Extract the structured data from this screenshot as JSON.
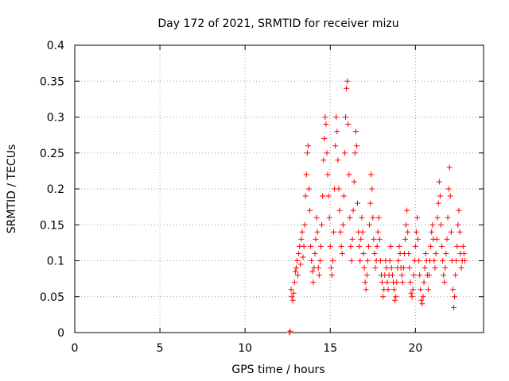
{
  "chart_data": {
    "type": "scatter",
    "title": "Day 172 of 2021, SRMTID for receiver mizu",
    "xlabel": "GPS time / hours",
    "ylabel": "SRMTID / TECUs",
    "xlim": [
      0,
      24
    ],
    "ylim": [
      0,
      0.4
    ],
    "xticks": [
      0,
      5,
      10,
      15,
      20
    ],
    "xtick_labels": [
      "0",
      "5",
      "10",
      "15",
      "20"
    ],
    "yticks": [
      0,
      0.05,
      0.1,
      0.15,
      0.2,
      0.25,
      0.3,
      0.35,
      0.4
    ],
    "ytick_labels": [
      "0",
      "0.05",
      "0.1",
      "0.15",
      "0.2",
      "0.25",
      "0.3",
      "0.35",
      "0.4"
    ],
    "grid": true,
    "marker": "+",
    "color": "#ff0000",
    "series": [
      {
        "name": "SRMTID",
        "points": [
          [
            12.6,
            0.0
          ],
          [
            12.65,
            0.002
          ],
          [
            12.7,
            0.06
          ],
          [
            12.75,
            0.05
          ],
          [
            12.8,
            0.045
          ],
          [
            12.85,
            0.055
          ],
          [
            12.9,
            0.07
          ],
          [
            12.95,
            0.085
          ],
          [
            13.0,
            0.09
          ],
          [
            13.05,
            0.1
          ],
          [
            13.1,
            0.08
          ],
          [
            13.15,
            0.11
          ],
          [
            13.2,
            0.12
          ],
          [
            13.25,
            0.095
          ],
          [
            13.3,
            0.13
          ],
          [
            13.35,
            0.14
          ],
          [
            13.4,
            0.105
          ],
          [
            13.45,
            0.12
          ],
          [
            13.5,
            0.15
          ],
          [
            13.55,
            0.19
          ],
          [
            13.6,
            0.22
          ],
          [
            13.65,
            0.25
          ],
          [
            13.7,
            0.26
          ],
          [
            13.75,
            0.2
          ],
          [
            13.8,
            0.17
          ],
          [
            13.85,
            0.12
          ],
          [
            13.9,
            0.1
          ],
          [
            13.95,
            0.085
          ],
          [
            14.0,
            0.07
          ],
          [
            14.05,
            0.09
          ],
          [
            14.1,
            0.11
          ],
          [
            14.15,
            0.13
          ],
          [
            14.2,
            0.16
          ],
          [
            14.25,
            0.14
          ],
          [
            14.3,
            0.09
          ],
          [
            14.35,
            0.08
          ],
          [
            14.4,
            0.1
          ],
          [
            14.45,
            0.12
          ],
          [
            14.5,
            0.15
          ],
          [
            14.55,
            0.19
          ],
          [
            14.6,
            0.24
          ],
          [
            14.65,
            0.27
          ],
          [
            14.7,
            0.3
          ],
          [
            14.75,
            0.29
          ],
          [
            14.8,
            0.25
          ],
          [
            14.85,
            0.22
          ],
          [
            14.9,
            0.19
          ],
          [
            14.95,
            0.16
          ],
          [
            15.0,
            0.12
          ],
          [
            15.05,
            0.09
          ],
          [
            15.1,
            0.08
          ],
          [
            15.15,
            0.1
          ],
          [
            15.2,
            0.14
          ],
          [
            15.25,
            0.2
          ],
          [
            15.3,
            0.26
          ],
          [
            15.35,
            0.3
          ],
          [
            15.4,
            0.28
          ],
          [
            15.45,
            0.24
          ],
          [
            15.5,
            0.2
          ],
          [
            15.55,
            0.17
          ],
          [
            15.6,
            0.14
          ],
          [
            15.65,
            0.12
          ],
          [
            15.7,
            0.11
          ],
          [
            15.75,
            0.15
          ],
          [
            15.8,
            0.19
          ],
          [
            15.85,
            0.25
          ],
          [
            15.9,
            0.3
          ],
          [
            15.95,
            0.34
          ],
          [
            16.0,
            0.35
          ],
          [
            16.05,
            0.29
          ],
          [
            16.1,
            0.22
          ],
          [
            16.15,
            0.16
          ],
          [
            16.2,
            0.12
          ],
          [
            16.25,
            0.1
          ],
          [
            16.3,
            0.13
          ],
          [
            16.35,
            0.17
          ],
          [
            16.4,
            0.21
          ],
          [
            16.45,
            0.25
          ],
          [
            16.5,
            0.28
          ],
          [
            16.55,
            0.26
          ],
          [
            16.6,
            0.18
          ],
          [
            16.65,
            0.14
          ],
          [
            16.7,
            0.12
          ],
          [
            16.75,
            0.1
          ],
          [
            16.8,
            0.13
          ],
          [
            16.85,
            0.16
          ],
          [
            16.9,
            0.14
          ],
          [
            16.95,
            0.11
          ],
          [
            17.0,
            0.09
          ],
          [
            17.05,
            0.07
          ],
          [
            17.1,
            0.06
          ],
          [
            17.15,
            0.08
          ],
          [
            17.2,
            0.1
          ],
          [
            17.25,
            0.12
          ],
          [
            17.3,
            0.15
          ],
          [
            17.35,
            0.18
          ],
          [
            17.4,
            0.22
          ],
          [
            17.45,
            0.2
          ],
          [
            17.5,
            0.16
          ],
          [
            17.55,
            0.13
          ],
          [
            17.6,
            0.11
          ],
          [
            17.65,
            0.09
          ],
          [
            17.7,
            0.1
          ],
          [
            17.75,
            0.12
          ],
          [
            17.8,
            0.14
          ],
          [
            17.85,
            0.16
          ],
          [
            17.9,
            0.13
          ],
          [
            17.95,
            0.1
          ],
          [
            18.0,
            0.08
          ],
          [
            18.05,
            0.07
          ],
          [
            18.1,
            0.05
          ],
          [
            18.15,
            0.06
          ],
          [
            18.2,
            0.08
          ],
          [
            18.25,
            0.1
          ],
          [
            18.3,
            0.09
          ],
          [
            18.35,
            0.07
          ],
          [
            18.4,
            0.06
          ],
          [
            18.45,
            0.08
          ],
          [
            18.5,
            0.1
          ],
          [
            18.55,
            0.12
          ],
          [
            18.6,
            0.09
          ],
          [
            18.65,
            0.08
          ],
          [
            18.7,
            0.07
          ],
          [
            18.75,
            0.06
          ],
          [
            18.8,
            0.045
          ],
          [
            18.85,
            0.05
          ],
          [
            18.9,
            0.07
          ],
          [
            18.95,
            0.09
          ],
          [
            19.0,
            0.1
          ],
          [
            19.05,
            0.12
          ],
          [
            19.1,
            0.11
          ],
          [
            19.15,
            0.09
          ],
          [
            19.2,
            0.08
          ],
          [
            19.25,
            0.07
          ],
          [
            19.3,
            0.09
          ],
          [
            19.35,
            0.11
          ],
          [
            19.4,
            0.13
          ],
          [
            19.45,
            0.15
          ],
          [
            19.5,
            0.17
          ],
          [
            19.55,
            0.14
          ],
          [
            19.6,
            0.11
          ],
          [
            19.65,
            0.09
          ],
          [
            19.7,
            0.07
          ],
          [
            19.75,
            0.055
          ],
          [
            19.8,
            0.05
          ],
          [
            19.85,
            0.06
          ],
          [
            19.9,
            0.08
          ],
          [
            19.95,
            0.1
          ],
          [
            20.0,
            0.12
          ],
          [
            20.05,
            0.14
          ],
          [
            20.1,
            0.16
          ],
          [
            20.15,
            0.13
          ],
          [
            20.2,
            0.1
          ],
          [
            20.25,
            0.08
          ],
          [
            20.3,
            0.06
          ],
          [
            20.35,
            0.045
          ],
          [
            20.4,
            0.04
          ],
          [
            20.45,
            0.05
          ],
          [
            20.5,
            0.07
          ],
          [
            20.55,
            0.09
          ],
          [
            20.6,
            0.11
          ],
          [
            20.65,
            0.1
          ],
          [
            20.7,
            0.08
          ],
          [
            20.75,
            0.06
          ],
          [
            20.8,
            0.08
          ],
          [
            20.85,
            0.1
          ],
          [
            20.9,
            0.12
          ],
          [
            20.95,
            0.14
          ],
          [
            21.0,
            0.15
          ],
          [
            21.05,
            0.13
          ],
          [
            21.1,
            0.1
          ],
          [
            21.15,
            0.09
          ],
          [
            21.2,
            0.11
          ],
          [
            21.25,
            0.13
          ],
          [
            21.3,
            0.16
          ],
          [
            21.35,
            0.18
          ],
          [
            21.4,
            0.21
          ],
          [
            21.45,
            0.19
          ],
          [
            21.5,
            0.15
          ],
          [
            21.55,
            0.12
          ],
          [
            21.6,
            0.1
          ],
          [
            21.65,
            0.08
          ],
          [
            21.7,
            0.07
          ],
          [
            21.75,
            0.09
          ],
          [
            21.8,
            0.11
          ],
          [
            21.85,
            0.13
          ],
          [
            21.9,
            0.16
          ],
          [
            21.95,
            0.2
          ],
          [
            22.0,
            0.23
          ],
          [
            22.05,
            0.19
          ],
          [
            22.1,
            0.14
          ],
          [
            22.15,
            0.1
          ],
          [
            22.2,
            0.06
          ],
          [
            22.25,
            0.035
          ],
          [
            22.3,
            0.05
          ],
          [
            22.35,
            0.08
          ],
          [
            22.4,
            0.1
          ],
          [
            22.45,
            0.12
          ],
          [
            22.5,
            0.15
          ],
          [
            22.55,
            0.17
          ],
          [
            22.6,
            0.14
          ],
          [
            22.65,
            0.11
          ],
          [
            22.7,
            0.09
          ],
          [
            22.75,
            0.1
          ],
          [
            22.8,
            0.12
          ],
          [
            22.85,
            0.11
          ],
          [
            22.9,
            0.1
          ]
        ]
      }
    ]
  }
}
